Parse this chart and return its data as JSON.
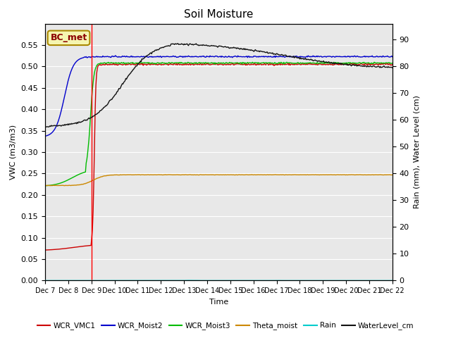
{
  "title": "Soil Moisture",
  "xlabel": "Time",
  "ylabel_left": "VWC (m3/m3)",
  "ylabel_right": "Rain (mm), Water Level (cm)",
  "ylim_left": [
    0.0,
    0.6
  ],
  "ylim_right": [
    0,
    96
  ],
  "yticks_left": [
    0.0,
    0.05,
    0.1,
    0.15,
    0.2,
    0.25,
    0.3,
    0.35,
    0.4,
    0.45,
    0.5,
    0.55
  ],
  "yticks_right": [
    0,
    10,
    20,
    30,
    40,
    50,
    60,
    70,
    80,
    90
  ],
  "bg_color": "#e8e8e8",
  "annotation_text": "BC_met",
  "annotation_color": "#8B0000",
  "annotation_bg": "#f5f5b0",
  "legend_labels": [
    "WCR_VMC1",
    "WCR_Moist2",
    "WCR_Moist3",
    "Theta_moist",
    "Rain",
    "WaterLevel_cm"
  ],
  "legend_colors": [
    "#cc0000",
    "#0000cc",
    "#00bb00",
    "#cc8800",
    "#00cccc",
    "#111111"
  ],
  "num_points": 500,
  "x_tick_labels": [
    "Dec 7",
    "Dec 8",
    "Dec 9",
    "Dec 10",
    "Dec 11",
    "Dec 12",
    "Dec 13",
    "Dec 14",
    "Dec 15",
    "Dec 16",
    "Dec 17",
    "Dec 18",
    "Dec 19",
    "Dec 20",
    "Dec 21",
    "Dec 22"
  ],
  "x_tick_positions": [
    0,
    24,
    48,
    72,
    96,
    120,
    144,
    168,
    192,
    216,
    240,
    264,
    288,
    312,
    336,
    360
  ]
}
